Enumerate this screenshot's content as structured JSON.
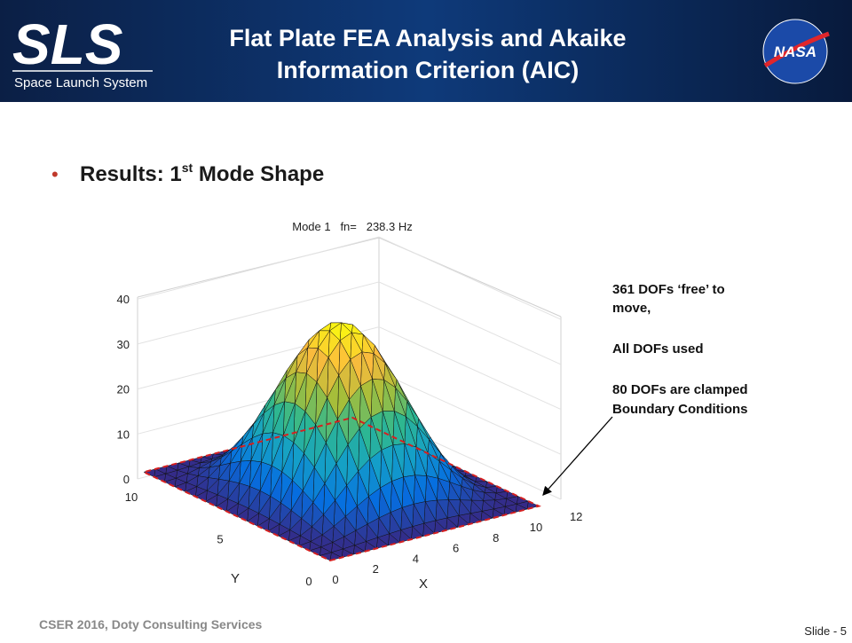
{
  "header": {
    "logo_text": "SLS",
    "logo_subtitle": "Space Launch System",
    "title_line1": "Flat Plate FEA Analysis and Akaike",
    "title_line2": "Information Criterion (AIC)",
    "nasa_logo": "NASA"
  },
  "bullet": {
    "text": "Results: 1",
    "superscript": "st",
    "rest": " Mode Shape"
  },
  "figure": {
    "title": "Mode 1   fn=   238.3 Hz",
    "zticks": [
      0,
      10,
      20,
      30,
      40
    ],
    "xticks": [
      0,
      2,
      4,
      6,
      8,
      10,
      12
    ],
    "yticks": [
      0,
      5,
      10
    ],
    "xlabel": "X",
    "ylabel": "Y"
  },
  "annotation": {
    "line1": "361 DOFs ‘free’ to",
    "line2": "move,",
    "line3": "All DOFs used",
    "line4": "80 DOFs are clamped",
    "line5": "Boundary Conditions"
  },
  "footer": {
    "left": "CSER 2016, Doty Consulting Services",
    "slide": "Slide - 5"
  }
}
